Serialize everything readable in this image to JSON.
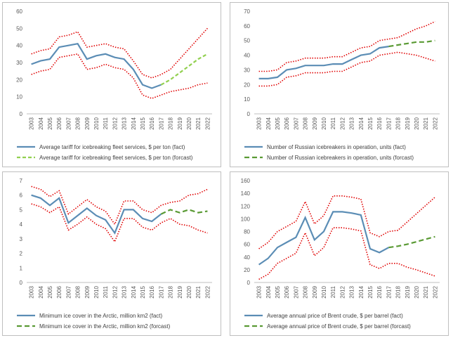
{
  "colors": {
    "fact": "#5b8db5",
    "forecast_a": "#92d050",
    "forecast_b": "#5a9a34",
    "bounds": "#e00000",
    "axis": "#bfbfbf"
  },
  "chart_data": [
    {
      "type": "line",
      "x": [
        "2003",
        "2004",
        "2005",
        "2006",
        "2007",
        "2008",
        "2009",
        "2010",
        "2011",
        "2012",
        "2013",
        "2014",
        "2015",
        "2016",
        "2017",
        "2018",
        "2019",
        "2020",
        "2021",
        "2022"
      ],
      "ylim": [
        0,
        60
      ],
      "yticks": [
        "0",
        "10",
        "20",
        "30",
        "40",
        "50",
        "60"
      ],
      "legend_position": "bottom",
      "series": [
        {
          "name": "Average tariff for icebreaking fleet services, $ per ton (fact)",
          "role": "fact",
          "values": [
            29,
            31,
            32,
            39,
            40,
            41,
            32,
            34,
            35,
            33,
            32,
            26,
            17,
            15,
            17,
            null,
            null,
            null,
            null,
            null
          ]
        },
        {
          "name": "Average tariff for icebreaking fleet services, $ per ton (forcast)",
          "role": "forecast",
          "values": [
            null,
            null,
            null,
            null,
            null,
            null,
            null,
            null,
            null,
            null,
            null,
            null,
            null,
            null,
            17,
            20,
            24,
            28,
            32,
            35
          ]
        },
        {
          "name": "",
          "role": "upper",
          "values": [
            35,
            37,
            38,
            45,
            46,
            48,
            39,
            40,
            41,
            39,
            38,
            31,
            23,
            21,
            23,
            26,
            32,
            38,
            44,
            50
          ]
        },
        {
          "name": "",
          "role": "lower",
          "values": [
            23,
            25,
            26,
            33,
            34,
            35,
            26,
            27,
            29,
            27,
            26,
            21,
            11,
            9,
            11,
            13,
            14,
            15,
            17,
            18
          ]
        }
      ]
    },
    {
      "type": "line",
      "x": [
        "2003",
        "2004",
        "2005",
        "2006",
        "2007",
        "2008",
        "2009",
        "2010",
        "2011",
        "2012",
        "2013",
        "2014",
        "2015",
        "2016",
        "2017",
        "2018",
        "2019",
        "2020",
        "2021",
        "2022"
      ],
      "ylim": [
        0,
        70
      ],
      "yticks": [
        "0",
        "10",
        "20",
        "30",
        "40",
        "50",
        "60",
        "70"
      ],
      "legend_position": "bottom",
      "series": [
        {
          "name": "Number of Russian icebreakers in operation, units (fact)",
          "role": "fact",
          "values": [
            24,
            24,
            25,
            30,
            31,
            33,
            33,
            33,
            34,
            34,
            37,
            40,
            41,
            45,
            46,
            null,
            null,
            null,
            null,
            null
          ]
        },
        {
          "name": "Number of Russian icebreakers in operation, units (forcast)",
          "role": "forecast",
          "values": [
            null,
            null,
            null,
            null,
            null,
            null,
            null,
            null,
            null,
            null,
            null,
            null,
            null,
            null,
            46,
            47,
            48,
            49,
            49,
            50
          ]
        },
        {
          "name": "",
          "role": "upper",
          "values": [
            29,
            29,
            30,
            35,
            36,
            38,
            38,
            38,
            39,
            39,
            42,
            45,
            46,
            50,
            51,
            52,
            55,
            58,
            60,
            63
          ]
        },
        {
          "name": "",
          "role": "lower",
          "values": [
            19,
            19,
            20,
            25,
            26,
            28,
            28,
            28,
            29,
            29,
            32,
            35,
            36,
            40,
            41,
            42,
            41,
            40,
            38,
            36
          ]
        }
      ]
    },
    {
      "type": "line",
      "x": [
        "2003",
        "2004",
        "2005",
        "2006",
        "2007",
        "2008",
        "2009",
        "2010",
        "2011",
        "2012",
        "2013",
        "2014",
        "2015",
        "2016",
        "2017",
        "2018",
        "2019",
        "2020",
        "2021",
        "2022"
      ],
      "ylim": [
        0,
        7
      ],
      "yticks": [
        "0",
        "1",
        "2",
        "3",
        "4",
        "5",
        "6",
        "7"
      ],
      "legend_position": "bottom",
      "series": [
        {
          "name": "Minimum ice cover in the Arctic, million km2 (fact)",
          "role": "fact",
          "values": [
            6.0,
            5.8,
            5.3,
            5.8,
            4.1,
            4.6,
            5.1,
            4.6,
            4.3,
            3.4,
            5.0,
            5.0,
            4.4,
            4.2,
            4.7,
            null,
            null,
            null,
            null,
            null
          ]
        },
        {
          "name": "Minimum ice cover in the Arctic, million km2 (forcast)",
          "role": "forecast",
          "values": [
            null,
            null,
            null,
            null,
            null,
            null,
            null,
            null,
            null,
            null,
            null,
            null,
            null,
            null,
            4.7,
            5.0,
            4.8,
            5.0,
            4.8,
            4.9
          ]
        },
        {
          "name": "",
          "role": "upper",
          "values": [
            6.6,
            6.4,
            5.9,
            6.3,
            4.7,
            5.2,
            5.7,
            5.2,
            4.9,
            4.0,
            5.6,
            5.6,
            5.0,
            4.8,
            5.3,
            5.5,
            5.6,
            6.0,
            6.1,
            6.4
          ]
        },
        {
          "name": "",
          "role": "lower",
          "values": [
            5.4,
            5.2,
            4.8,
            5.2,
            3.6,
            4.0,
            4.5,
            4.0,
            3.7,
            2.8,
            4.4,
            4.4,
            3.8,
            3.6,
            4.1,
            4.4,
            4.0,
            3.9,
            3.6,
            3.4
          ]
        }
      ]
    },
    {
      "type": "line",
      "x": [
        "2003",
        "2004",
        "2005",
        "2006",
        "2007",
        "2008",
        "2009",
        "2010",
        "2011",
        "2012",
        "2013",
        "2014",
        "2015",
        "2016",
        "2017",
        "2018",
        "2019",
        "2020",
        "2021",
        "2022"
      ],
      "ylim": [
        0,
        160
      ],
      "yticks": [
        "0",
        "20",
        "40",
        "60",
        "80",
        "100",
        "120",
        "140",
        "160"
      ],
      "legend_position": "bottom",
      "series": [
        {
          "name": "Average annual price of Brent crude, $ per barrel (fact)",
          "role": "fact",
          "values": [
            28,
            38,
            55,
            63,
            71,
            102,
            67,
            80,
            111,
            111,
            109,
            106,
            53,
            47,
            55,
            null,
            null,
            null,
            null,
            null
          ]
        },
        {
          "name": "Average annual price of Brent crude, $ per barrel (forcast)",
          "role": "forecast",
          "values": [
            null,
            null,
            null,
            null,
            null,
            null,
            null,
            null,
            null,
            null,
            null,
            null,
            null,
            null,
            55,
            57,
            60,
            64,
            68,
            72
          ]
        },
        {
          "name": "",
          "role": "upper",
          "values": [
            53,
            63,
            80,
            88,
            96,
            127,
            92,
            105,
            136,
            136,
            134,
            131,
            78,
            72,
            80,
            82,
            95,
            108,
            121,
            134
          ]
        },
        {
          "name": "",
          "role": "lower",
          "values": [
            5,
            13,
            30,
            38,
            46,
            78,
            42,
            55,
            86,
            86,
            84,
            81,
            28,
            22,
            30,
            30,
            24,
            20,
            15,
            10
          ]
        }
      ]
    }
  ]
}
